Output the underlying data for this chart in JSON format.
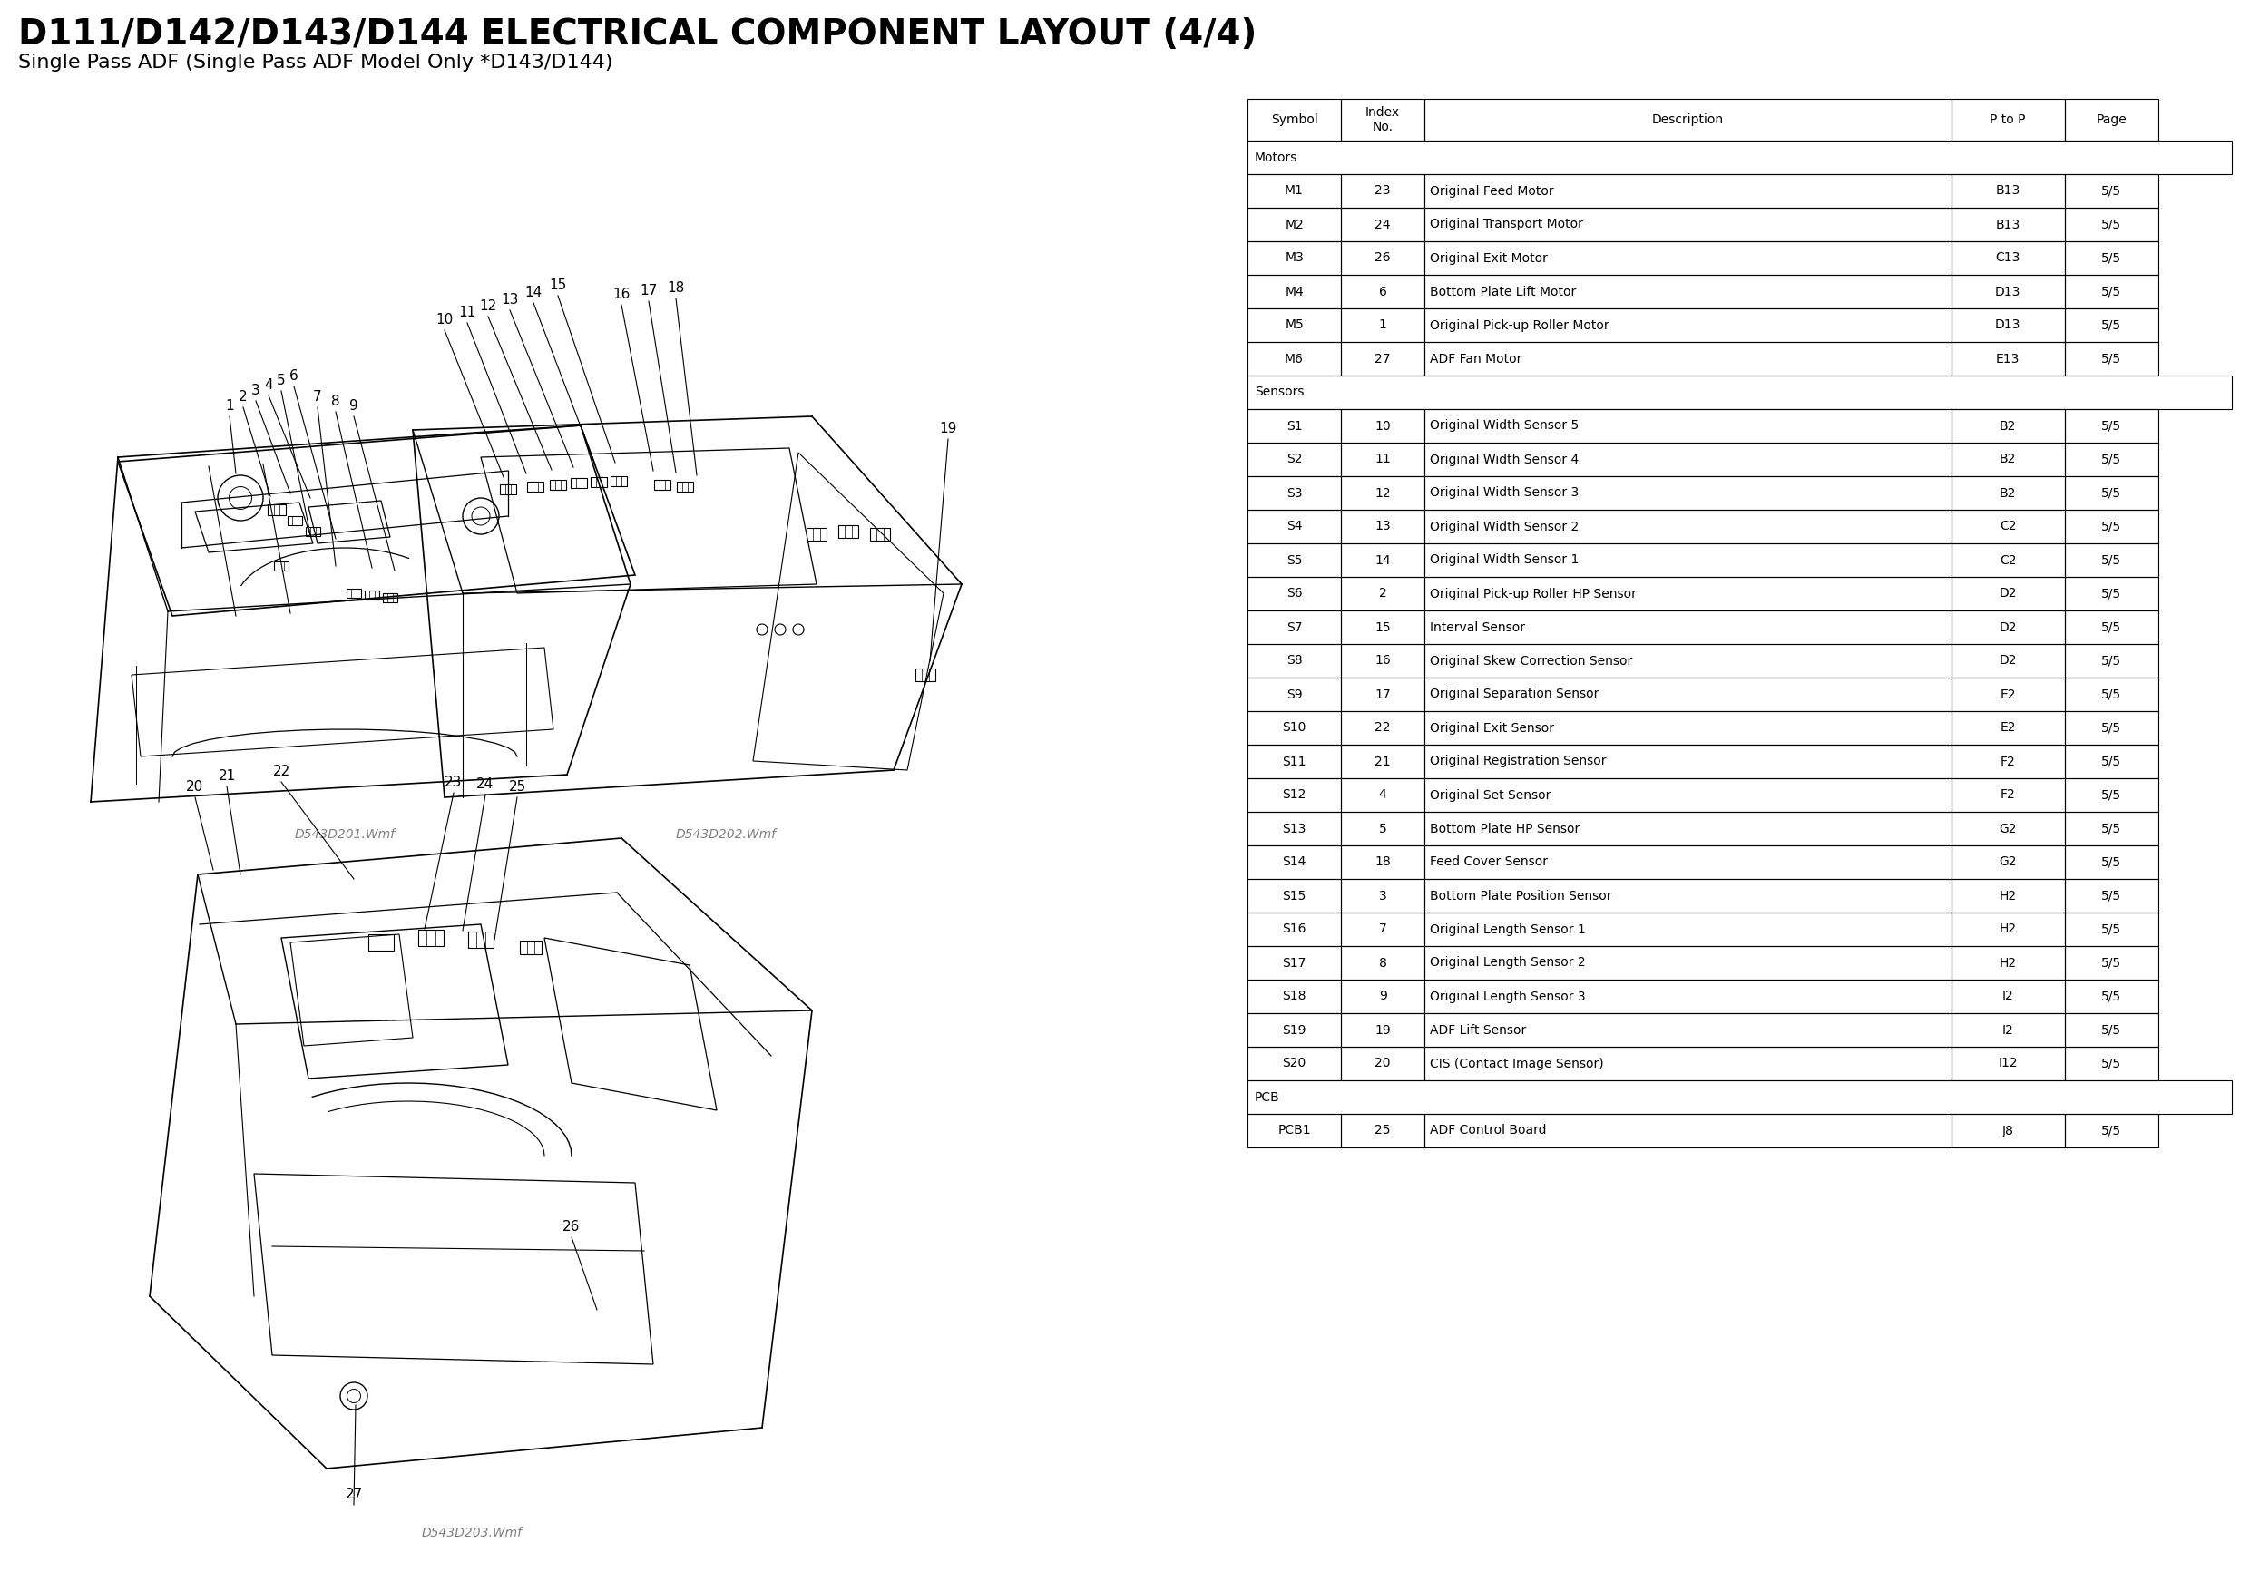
{
  "title": "D111/D142/D143/D144 ELECTRICAL COMPONENT LAYOUT (4/4)",
  "subtitle": "Single Pass ADF (Single Pass ADF Model Only *D143/D144)",
  "title_fontsize": 28,
  "subtitle_fontsize": 16,
  "bg_color": "#ffffff",
  "table_section_motors": "Motors",
  "table_section_sensors": "Sensors",
  "table_section_pcb": "PCB",
  "motors": [
    [
      "M1",
      "23",
      "Original Feed Motor",
      "B13",
      "5/5"
    ],
    [
      "M2",
      "24",
      "Original Transport Motor",
      "B13",
      "5/5"
    ],
    [
      "M3",
      "26",
      "Original Exit Motor",
      "C13",
      "5/5"
    ],
    [
      "M4",
      "6",
      "Bottom Plate Lift Motor",
      "D13",
      "5/5"
    ],
    [
      "M5",
      "1",
      "Original Pick-up Roller Motor",
      "D13",
      "5/5"
    ],
    [
      "M6",
      "27",
      "ADF Fan Motor",
      "E13",
      "5/5"
    ]
  ],
  "sensors": [
    [
      "S1",
      "10",
      "Original Width Sensor 5",
      "B2",
      "5/5"
    ],
    [
      "S2",
      "11",
      "Original Width Sensor 4",
      "B2",
      "5/5"
    ],
    [
      "S3",
      "12",
      "Original Width Sensor 3",
      "B2",
      "5/5"
    ],
    [
      "S4",
      "13",
      "Original Width Sensor 2",
      "C2",
      "5/5"
    ],
    [
      "S5",
      "14",
      "Original Width Sensor 1",
      "C2",
      "5/5"
    ],
    [
      "S6",
      "2",
      "Original Pick-up Roller HP Sensor",
      "D2",
      "5/5"
    ],
    [
      "S7",
      "15",
      "Interval Sensor",
      "D2",
      "5/5"
    ],
    [
      "S8",
      "16",
      "Original Skew Correction Sensor",
      "D2",
      "5/5"
    ],
    [
      "S9",
      "17",
      "Original Separation Sensor",
      "E2",
      "5/5"
    ],
    [
      "S10",
      "22",
      "Original Exit Sensor",
      "E2",
      "5/5"
    ],
    [
      "S11",
      "21",
      "Original Registration Sensor",
      "F2",
      "5/5"
    ],
    [
      "S12",
      "4",
      "Original Set Sensor",
      "F2",
      "5/5"
    ],
    [
      "S13",
      "5",
      "Bottom Plate HP Sensor",
      "G2",
      "5/5"
    ],
    [
      "S14",
      "18",
      "Feed Cover Sensor",
      "G2",
      "5/5"
    ],
    [
      "S15",
      "3",
      "Bottom Plate Position Sensor",
      "H2",
      "5/5"
    ],
    [
      "S16",
      "7",
      "Original Length Sensor 1",
      "H2",
      "5/5"
    ],
    [
      "S17",
      "8",
      "Original Length Sensor 2",
      "H2",
      "5/5"
    ],
    [
      "S18",
      "9",
      "Original Length Sensor 3",
      "I2",
      "5/5"
    ],
    [
      "S19",
      "19",
      "ADF Lift Sensor",
      "I2",
      "5/5"
    ],
    [
      "S20",
      "20",
      "CIS (Contact Image Sensor)",
      "I12",
      "5/5"
    ]
  ],
  "pcb": [
    [
      "PCB1",
      "25",
      "ADF Control Board",
      "J8",
      "5/5"
    ]
  ],
  "diagram1_caption": "D543D201.Wmf",
  "diagram2_caption": "D543D202.Wmf",
  "diagram3_caption": "D543D203.Wmf",
  "line_color": "#000000",
  "table_border_color": "#000000",
  "text_color": "#000000",
  "caption_color": "#808080"
}
